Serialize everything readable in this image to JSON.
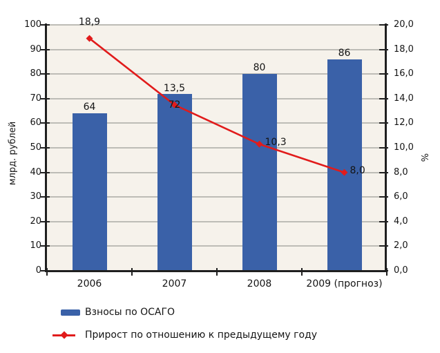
{
  "chart_data": {
    "type": "bar",
    "combo": "bar+line",
    "categories": [
      "2006",
      "2007",
      "2008",
      "2009 (прогноз)"
    ],
    "series": [
      {
        "name": "Взносы по ОСАГО",
        "type": "bar",
        "axis": "left",
        "values": [
          64,
          72,
          80,
          86
        ],
        "point_labels": [
          "64",
          "72",
          "80",
          "86"
        ]
      },
      {
        "name": "Прирост по отношению к предыдущему году",
        "type": "line",
        "axis": "right",
        "values": [
          18.9,
          13.5,
          10.3,
          8.0
        ],
        "point_labels": [
          "18,9",
          "13,5",
          "10,3",
          "8,0"
        ]
      }
    ],
    "left_axis": {
      "title": "млрд. рублей",
      "min": 0,
      "max": 100,
      "step": 10,
      "ticks": [
        "0",
        "10",
        "20",
        "30",
        "40",
        "50",
        "60",
        "70",
        "80",
        "90",
        "100"
      ]
    },
    "right_axis": {
      "title": "%",
      "min": 0,
      "max": 20,
      "step": 2,
      "ticks": [
        "0,0",
        "2,0",
        "4,0",
        "6,0",
        "8,0",
        "10,0",
        "12,0",
        "14,0",
        "16,0",
        "18,0",
        "20,0"
      ]
    },
    "grid": true,
    "legend_position": "bottom-left",
    "colors": {
      "bar": "#3A61A8",
      "line": "#E11B1B",
      "plot_bg": "#F6F2EB",
      "gridline": "#BDBCB6",
      "axis": "#1F1F1F",
      "text": "#141414"
    },
    "layout_hints": {
      "bar_label_placement": [
        "above",
        "inside-top",
        "above",
        "above"
      ],
      "line_label_placement": [
        "above",
        "above",
        "right",
        "right"
      ]
    }
  },
  "legend": {
    "items": [
      {
        "label": "Взносы по ОСАГО",
        "marker": "bar-swatch"
      },
      {
        "label": "Прирост по отношению к предыдущему году",
        "marker": "line-diamond"
      }
    ]
  }
}
